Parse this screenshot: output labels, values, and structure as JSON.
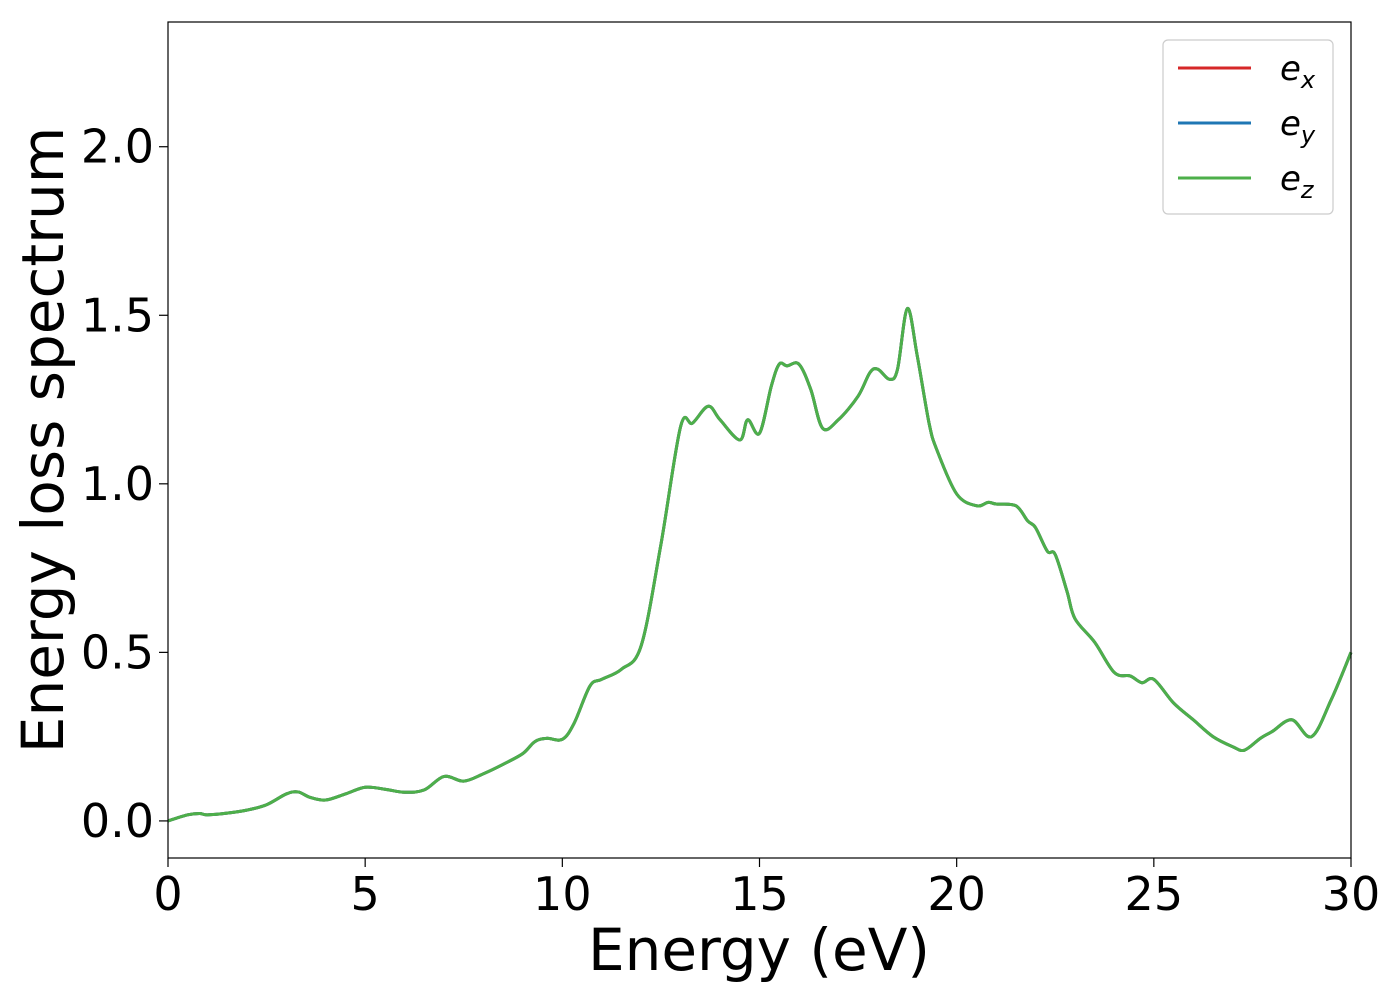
{
  "chart_data": {
    "type": "line",
    "xlabel": "Energy (eV)",
    "ylabel": "Energy loss spectrum",
    "xlim": [
      0,
      30
    ],
    "ylim": [
      -0.11,
      2.37
    ],
    "xticks": [
      0,
      5,
      10,
      15,
      20,
      25,
      30
    ],
    "yticks": [
      0.0,
      0.5,
      1.0,
      1.5,
      2.0
    ],
    "xtick_labels": [
      "0",
      "5",
      "10",
      "15",
      "20",
      "25",
      "30"
    ],
    "ytick_labels": [
      "0.0",
      "0.5",
      "1.0",
      "1.5",
      "2.0"
    ],
    "grid": false,
    "legend_position": "top-right",
    "series": [
      {
        "name": "e",
        "subscript": "x",
        "color": "#d62728",
        "values_same_as": "e_z"
      },
      {
        "name": "e",
        "subscript": "y",
        "color": "#1f77b4",
        "values_same_as": "e_z"
      },
      {
        "name": "e",
        "subscript": "z",
        "color": "#4daf4a",
        "values_same_as": "e_z"
      }
    ],
    "x": [
      0,
      0.5,
      0.8,
      1.0,
      1.5,
      2.0,
      2.5,
      3.0,
      3.3,
      3.6,
      4.0,
      4.5,
      5.0,
      5.5,
      6.0,
      6.5,
      7.0,
      7.5,
      8.0,
      8.5,
      9.0,
      9.3,
      9.6,
      10.0,
      10.3,
      10.7,
      11.0,
      11.5,
      12.0,
      12.5,
      13.0,
      13.3,
      13.7,
      14.0,
      14.5,
      14.7,
      15.0,
      15.3,
      15.5,
      15.7,
      16.0,
      16.3,
      16.6,
      17.0,
      17.5,
      17.8,
      18.0,
      18.3,
      18.5,
      18.75,
      19.0,
      19.3,
      19.5,
      20.0,
      20.5,
      20.8,
      21.0,
      21.5,
      21.8,
      22.0,
      22.3,
      22.5,
      22.8,
      23.0,
      23.5,
      24.0,
      24.4,
      24.7,
      25.0,
      25.5,
      26.0,
      26.5,
      27.0,
      27.3,
      27.7,
      28.0,
      28.5,
      29.0,
      29.5,
      30.0
    ],
    "values": [
      0.0,
      0.018,
      0.022,
      0.018,
      0.023,
      0.032,
      0.048,
      0.08,
      0.086,
      0.07,
      0.062,
      0.08,
      0.1,
      0.094,
      0.085,
      0.092,
      0.132,
      0.118,
      0.14,
      0.168,
      0.2,
      0.235,
      0.245,
      0.242,
      0.29,
      0.4,
      0.42,
      0.45,
      0.52,
      0.82,
      1.17,
      1.18,
      1.23,
      1.19,
      1.13,
      1.19,
      1.15,
      1.29,
      1.355,
      1.35,
      1.355,
      1.28,
      1.165,
      1.19,
      1.26,
      1.33,
      1.34,
      1.31,
      1.34,
      1.52,
      1.38,
      1.18,
      1.1,
      0.97,
      0.935,
      0.945,
      0.94,
      0.935,
      0.89,
      0.87,
      0.8,
      0.79,
      0.68,
      0.6,
      0.53,
      0.44,
      0.43,
      0.41,
      0.42,
      0.35,
      0.3,
      0.25,
      0.22,
      0.21,
      0.245,
      0.265,
      0.3,
      0.25,
      0.36,
      0.5
    ]
  }
}
